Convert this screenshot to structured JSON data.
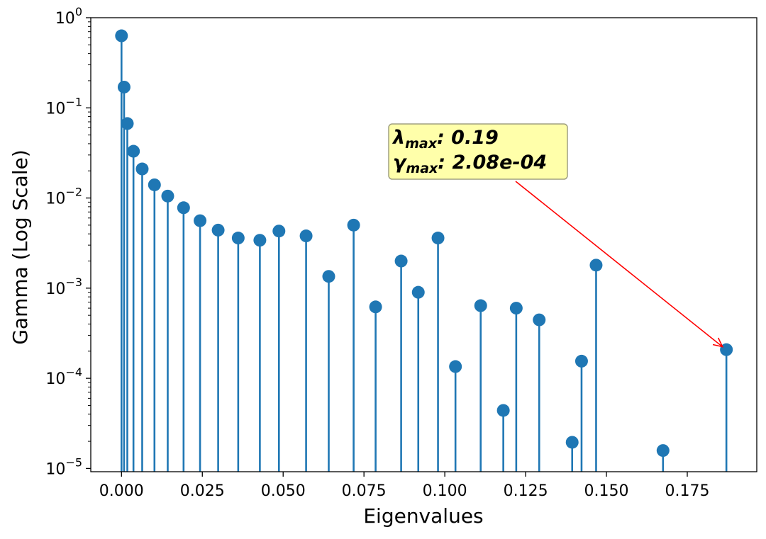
{
  "chart_data": {
    "type": "stem",
    "xlabel": "Eigenvalues",
    "ylabel": "Gamma (Log Scale)",
    "xlim": [
      -0.0095,
      0.1965
    ],
    "ylim": [
      9.2e-06,
      1.0
    ],
    "yscale": "log",
    "xticks": [
      0.0,
      0.025,
      0.05,
      0.075,
      0.1,
      0.125,
      0.15,
      0.175
    ],
    "xtick_labels": [
      "0.000",
      "0.025",
      "0.050",
      "0.075",
      "0.100",
      "0.125",
      "0.150",
      "0.175"
    ],
    "yticks": [
      1,
      0.1,
      0.01,
      0.001,
      0.0001,
      1e-05
    ],
    "ytick_bases": [
      "10",
      "10",
      "10",
      "10",
      "10",
      "10"
    ],
    "ytick_exponents": [
      "0",
      "−1",
      "−2",
      "−3",
      "−4",
      "−5"
    ],
    "series": [
      {
        "name": "gamma",
        "color": "#1f77b4",
        "points": [
          {
            "x": 0.0,
            "y": 0.63
          },
          {
            "x": 0.0008,
            "y": 0.17
          },
          {
            "x": 0.0018,
            "y": 0.067
          },
          {
            "x": 0.0037,
            "y": 0.033
          },
          {
            "x": 0.0064,
            "y": 0.021
          },
          {
            "x": 0.0102,
            "y": 0.014
          },
          {
            "x": 0.0143,
            "y": 0.0105
          },
          {
            "x": 0.0192,
            "y": 0.0078
          },
          {
            "x": 0.0243,
            "y": 0.0056
          },
          {
            "x": 0.0299,
            "y": 0.0044
          },
          {
            "x": 0.0361,
            "y": 0.0036
          },
          {
            "x": 0.0428,
            "y": 0.0034
          },
          {
            "x": 0.0487,
            "y": 0.0043
          },
          {
            "x": 0.0571,
            "y": 0.0038
          },
          {
            "x": 0.0641,
            "y": 0.00135
          },
          {
            "x": 0.0718,
            "y": 0.005
          },
          {
            "x": 0.0786,
            "y": 0.00062
          },
          {
            "x": 0.0865,
            "y": 0.002
          },
          {
            "x": 0.0918,
            "y": 0.0009
          },
          {
            "x": 0.0979,
            "y": 0.0036
          },
          {
            "x": 0.1033,
            "y": 0.000135
          },
          {
            "x": 0.1111,
            "y": 0.00064
          },
          {
            "x": 0.1181,
            "y": 4.4e-05
          },
          {
            "x": 0.1221,
            "y": 0.0006
          },
          {
            "x": 0.1292,
            "y": 0.000445
          },
          {
            "x": 0.1394,
            "y": 1.95e-05
          },
          {
            "x": 0.1423,
            "y": 0.000155
          },
          {
            "x": 0.1468,
            "y": 0.0018
          },
          {
            "x": 0.1675,
            "y": 1.58e-05
          },
          {
            "x": 0.1871,
            "y": 0.000208
          }
        ]
      }
    ],
    "annotation": {
      "lambda_symbol": "λ",
      "lambda_sub": "max",
      "lambda_value": ": 0.19",
      "gamma_symbol": "γ",
      "gamma_sub": "max",
      "gamma_value": ": 2.08e-04",
      "target": {
        "x": 0.187,
        "y": 0.000208
      },
      "box_color": "#ffffaa",
      "arrow_color": "#ff0000"
    }
  }
}
